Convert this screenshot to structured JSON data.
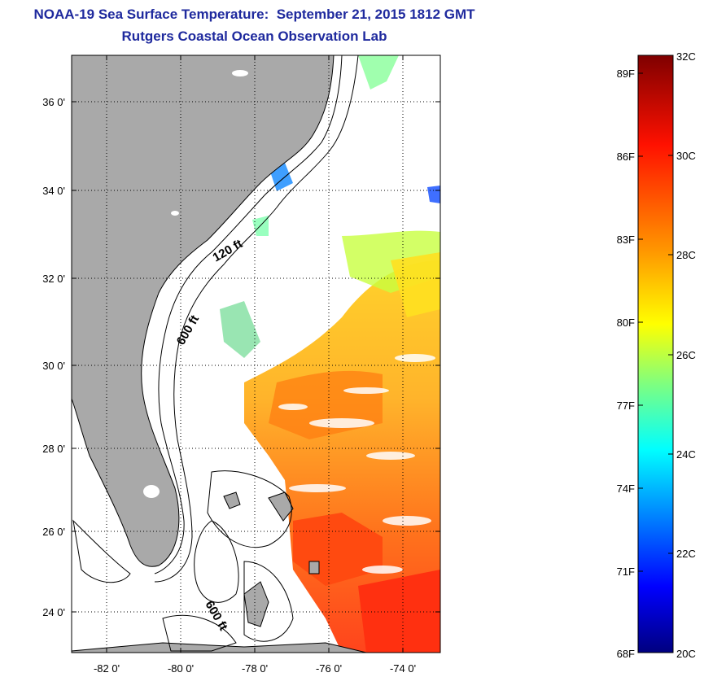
{
  "title": "NOAA-19 Sea Surface Temperature:  September 21, 2015 1812 GMT",
  "subtitle": "Rutgers Coastal Ocean Observation Lab",
  "map": {
    "lat_labels": [
      "36 0'",
      "34 0'",
      "32 0'",
      "30 0'",
      "28 0'",
      "26 0'",
      "24 0'"
    ],
    "lon_labels": [
      "-82 0'",
      "-80 0'",
      "-78 0'",
      "-76 0'",
      "-74 0'"
    ],
    "contour_labels": [
      "120 ft",
      "600 ft",
      "600 ft"
    ],
    "colors": {
      "land": "#a9a9a9",
      "cloud": "#ffffff",
      "grid": "#000000"
    }
  },
  "colorbar": {
    "fahrenheit_labels": [
      "89F",
      "86F",
      "83F",
      "80F",
      "77F",
      "74F",
      "71F",
      "68F"
    ],
    "celsius_labels": [
      "32C",
      "30C",
      "28C",
      "26C",
      "24C",
      "22C",
      "20C"
    ],
    "range_celsius": [
      20,
      32
    ],
    "colors": [
      "#00007f",
      "#0000ff",
      "#007fff",
      "#00ffff",
      "#7fff7f",
      "#ffff00",
      "#ff7f00",
      "#ff0000",
      "#7f0000"
    ]
  }
}
